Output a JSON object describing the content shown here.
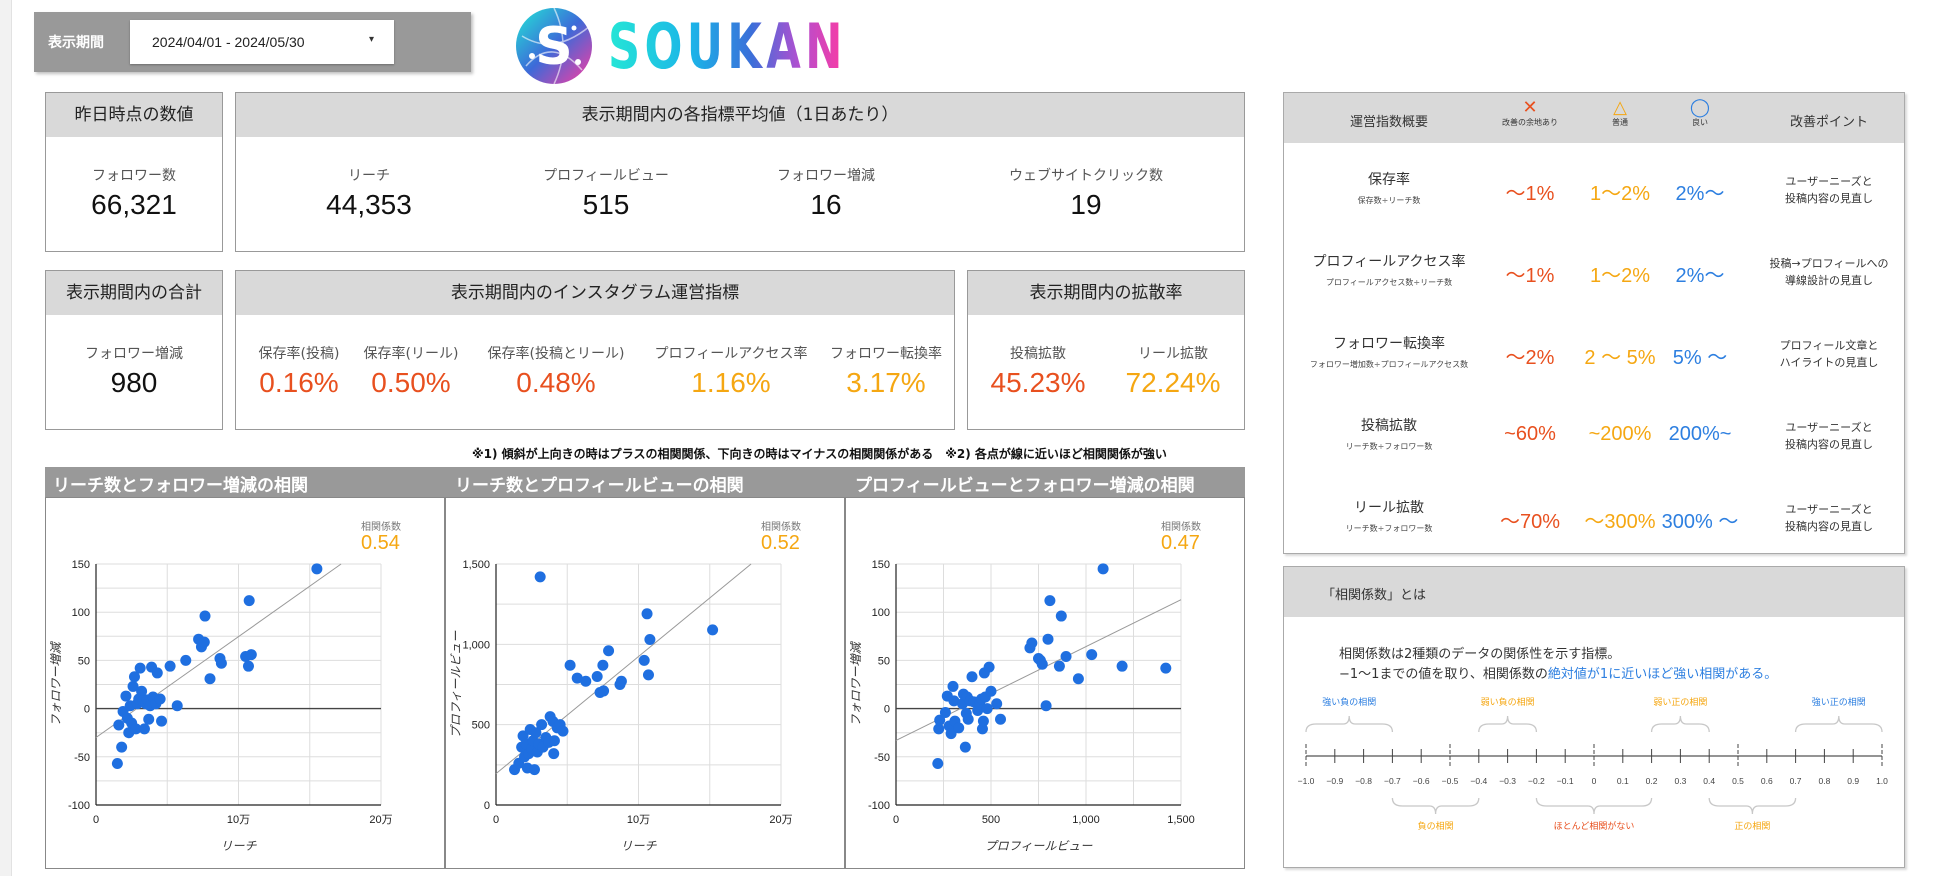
{
  "filter": {
    "label": "表示期間",
    "value": "2024/04/01 - 2024/05/30",
    "caret": "▾"
  },
  "logo": {
    "text": "SOUKAN"
  },
  "yesterday": {
    "title": "昨日時点の数値",
    "label": "フォロワー数",
    "value": "66,321"
  },
  "average": {
    "title": "表示期間内の各指標平均値（1日あたり）",
    "items": [
      {
        "label": "リーチ",
        "value": "44,353"
      },
      {
        "label": "プロフィールビュー",
        "value": "515"
      },
      {
        "label": "フォロワー増減",
        "value": "16"
      },
      {
        "label": "ウェブサイトクリック数",
        "value": "19"
      }
    ]
  },
  "total": {
    "title": "表示期間内の合計",
    "label": "フォロワー増減",
    "value": "980"
  },
  "ops": {
    "title": "表示期間内のインスタグラム運営指標",
    "items": [
      {
        "label": "保存率(投稿)",
        "value": "0.16%",
        "tone": "red"
      },
      {
        "label": "保存率(リール)",
        "value": "0.50%",
        "tone": "red"
      },
      {
        "label": "保存率(投稿とリール)",
        "value": "0.48%",
        "tone": "red"
      },
      {
        "label": "プロフィールアクセス率",
        "value": "1.16%",
        "tone": "orange"
      },
      {
        "label": "フォロワー転換率",
        "value": "3.17%",
        "tone": "orange"
      }
    ]
  },
  "spread": {
    "title": "表示期間内の拡散率",
    "items": [
      {
        "label": "投稿拡散",
        "value": "45.23%",
        "tone": "red"
      },
      {
        "label": "リール拡散",
        "value": "72.24%",
        "tone": "orange"
      }
    ]
  },
  "note": "※1) 傾斜が上向きの時はプラスの相関関係、下向きの時はマイナスの相関関係がある　※2) 各点が線に近いほど相関関係が強い",
  "charts": {
    "titles": [
      "リーチ数とフォロワー増減の相関",
      "リーチ数とプロフィールビューの相関",
      "プロフィールビューとフォロワー増減の相関"
    ],
    "coef_label": "相関係数"
  },
  "chart_data": [
    {
      "type": "scatter",
      "title": "リーチ数とフォロワー増減の相関",
      "xlabel": "リーチ",
      "ylabel": "フォロワー増減",
      "xlim": [
        0,
        200000
      ],
      "ylim": [
        -100,
        150
      ],
      "xticks": [
        "0",
        "10万",
        "20万"
      ],
      "yticks": [
        "-100",
        "-50",
        "0",
        "50",
        "100",
        "150"
      ],
      "correlation": "0.54",
      "trendline": [
        [
          0,
          -30
        ],
        [
          172000,
          150
        ]
      ],
      "points": [
        [
          15000,
          -57
        ],
        [
          18000,
          -40
        ],
        [
          16000,
          -17
        ],
        [
          19000,
          -3
        ],
        [
          21000,
          13
        ],
        [
          22000,
          -10
        ],
        [
          23000,
          -25
        ],
        [
          24000,
          3
        ],
        [
          25000,
          -15
        ],
        [
          26000,
          23
        ],
        [
          27000,
          33
        ],
        [
          28000,
          -21
        ],
        [
          29000,
          5
        ],
        [
          30000,
          10
        ],
        [
          31000,
          42
        ],
        [
          32000,
          18
        ],
        [
          33000,
          8
        ],
        [
          34000,
          -21
        ],
        [
          35000,
          5
        ],
        [
          36000,
          9
        ],
        [
          37000,
          -11
        ],
        [
          38000,
          3
        ],
        [
          39000,
          43
        ],
        [
          40000,
          12
        ],
        [
          42000,
          5
        ],
        [
          43000,
          37
        ],
        [
          45000,
          10
        ],
        [
          46000,
          -13
        ],
        [
          52000,
          44
        ],
        [
          57000,
          3
        ],
        [
          63000,
          50
        ],
        [
          72000,
          72
        ],
        [
          74000,
          64
        ],
        [
          76000,
          69
        ],
        [
          76500,
          96
        ],
        [
          80000,
          31
        ],
        [
          87000,
          52
        ],
        [
          88000,
          47
        ],
        [
          105000,
          54
        ],
        [
          107000,
          44
        ],
        [
          107500,
          112
        ],
        [
          109000,
          56
        ],
        [
          155000,
          145
        ]
      ]
    },
    {
      "type": "scatter",
      "title": "リーチ数とプロフィールビューの相関",
      "xlabel": "リーチ",
      "ylabel": "プロフィールビュー",
      "xlim": [
        0,
        200000
      ],
      "ylim": [
        0,
        1500
      ],
      "xticks": [
        "0",
        "10万",
        "20万"
      ],
      "yticks": [
        "0",
        "500",
        "1,000",
        "1,500"
      ],
      "correlation": "0.52",
      "trendline": [
        [
          0,
          195
        ],
        [
          179000,
          1500
        ]
      ],
      "points": [
        [
          13000,
          220
        ],
        [
          16000,
          260
        ],
        [
          18000,
          360
        ],
        [
          19000,
          430
        ],
        [
          20000,
          300
        ],
        [
          21000,
          380
        ],
        [
          22000,
          230
        ],
        [
          23000,
          320
        ],
        [
          24000,
          470
        ],
        [
          25000,
          350
        ],
        [
          26000,
          400
        ],
        [
          27000,
          220
        ],
        [
          28000,
          450
        ],
        [
          29000,
          330
        ],
        [
          30000,
          380
        ],
        [
          31000,
          1420
        ],
        [
          32000,
          500
        ],
        [
          33000,
          360
        ],
        [
          35000,
          420
        ],
        [
          37000,
          390
        ],
        [
          38000,
          550
        ],
        [
          40000,
          520
        ],
        [
          40500,
          320
        ],
        [
          41000,
          400
        ],
        [
          43000,
          480
        ],
        [
          45000,
          500
        ],
        [
          47000,
          460
        ],
        [
          52000,
          870
        ],
        [
          57000,
          790
        ],
        [
          63000,
          770
        ],
        [
          71000,
          800
        ],
        [
          73000,
          700
        ],
        [
          75000,
          870
        ],
        [
          75500,
          710
        ],
        [
          79000,
          960
        ],
        [
          87000,
          750
        ],
        [
          88000,
          770
        ],
        [
          104000,
          900
        ],
        [
          106000,
          1190
        ],
        [
          107000,
          810
        ],
        [
          108000,
          1030
        ],
        [
          152000,
          1090
        ]
      ]
    },
    {
      "type": "scatter",
      "title": "プロフィールビューとフォロワー増減の相関",
      "xlabel": "プロフィールビュー",
      "ylabel": "フォロワー増減",
      "xlim": [
        0,
        1500
      ],
      "ylim": [
        -100,
        150
      ],
      "xticks": [
        "0",
        "500",
        "1,000",
        "1,500"
      ],
      "yticks": [
        "-100",
        "-50",
        "0",
        "50",
        "100",
        "150"
      ],
      "correlation": "0.47",
      "trendline": [
        [
          0,
          -33
        ],
        [
          1500,
          113
        ]
      ],
      "points": [
        [
          220,
          -57
        ],
        [
          225,
          -21
        ],
        [
          230,
          -12
        ],
        [
          260,
          -4
        ],
        [
          270,
          13
        ],
        [
          280,
          -18
        ],
        [
          290,
          -26
        ],
        [
          300,
          23
        ],
        [
          305,
          8
        ],
        [
          310,
          -13
        ],
        [
          330,
          -20
        ],
        [
          350,
          5
        ],
        [
          355,
          15
        ],
        [
          365,
          -40
        ],
        [
          370,
          -5
        ],
        [
          375,
          12
        ],
        [
          380,
          -11
        ],
        [
          390,
          8
        ],
        [
          400,
          33
        ],
        [
          410,
          7
        ],
        [
          430,
          -2
        ],
        [
          440,
          5
        ],
        [
          450,
          10
        ],
        [
          455,
          -21
        ],
        [
          460,
          -13
        ],
        [
          465,
          37
        ],
        [
          470,
          12
        ],
        [
          480,
          0
        ],
        [
          490,
          43
        ],
        [
          500,
          18
        ],
        [
          530,
          5
        ],
        [
          550,
          -11
        ],
        [
          705,
          63
        ],
        [
          715,
          68
        ],
        [
          750,
          52
        ],
        [
          760,
          50
        ],
        [
          770,
          46
        ],
        [
          790,
          3
        ],
        [
          800,
          72
        ],
        [
          810,
          112
        ],
        [
          860,
          44
        ],
        [
          870,
          96
        ],
        [
          895,
          54
        ],
        [
          960,
          31
        ],
        [
          1030,
          56
        ],
        [
          1090,
          145
        ],
        [
          1190,
          44
        ],
        [
          1420,
          42
        ]
      ]
    }
  ],
  "guide": {
    "head": {
      "summary": "運営指数概要",
      "bad": {
        "symbol": "✕",
        "label": "改善の余地あり"
      },
      "mid": {
        "symbol": "△",
        "label": "普通"
      },
      "good": {
        "symbol": "◯",
        "label": "良い"
      },
      "point": "改善ポイント"
    },
    "rows": [
      {
        "name": "保存率",
        "formula": "保存数÷リーチ数",
        "bad": "～1%",
        "mid": "1～2%",
        "good": "2%～",
        "tip": "ユーザーニーズと\n投稿内容の見直し"
      },
      {
        "name": "プロフィールアクセス率",
        "formula": "プロフィールアクセス数÷リーチ数",
        "bad": "～1%",
        "mid": "1～2%",
        "good": "2%～",
        "tip": "投稿→プロフィールへの\n導線設計の見直し"
      },
      {
        "name": "フォロワー転換率",
        "formula": "フォロワー増加数÷プロフィールアクセス数",
        "bad": "～2%",
        "mid": "2 ～ 5%",
        "good": "5% ～",
        "tip": "プロフィール文章と\nハイライトの見直し"
      },
      {
        "name": "投稿拡散",
        "formula": "リーチ数÷フォロワー数",
        "bad": "~60%",
        "mid": "~200%",
        "good": "200%~",
        "tip": "ユーザーニーズと\n投稿内容の見直し"
      },
      {
        "name": "リール拡散",
        "formula": "リーチ数÷フォロワー数",
        "bad": "～70%",
        "mid": "～300%",
        "good": "300% ～",
        "tip": "ユーザーニーズと\n投稿内容の見直し"
      }
    ]
  },
  "corr": {
    "title": "「相関係数」とは",
    "line1": "相関係数は2種類のデータの関係性を示す指標。",
    "line2_a": "−1〜1までの値を取り、相関係数の",
    "line2_b": "絶対値が1に近いほど強い相関がある。",
    "scale": [
      "−1.0",
      "−0.9",
      "−0.8",
      "−0.7",
      "−0.6",
      "−0.5",
      "−0.4",
      "−0.3",
      "−0.2",
      "−0.1",
      "0",
      "0.1",
      "0.2",
      "0.3",
      "0.4",
      "0.5",
      "0.6",
      "0.7",
      "0.8",
      "0.9",
      "1.0"
    ],
    "ranges_top": [
      {
        "label": "強い負の相関",
        "from": -1.0,
        "to": -0.7,
        "color": "#2d7fe0"
      },
      {
        "label": "弱い負の相関",
        "from": -0.4,
        "to": -0.2,
        "color": "#f5a712"
      },
      {
        "label": "弱い正の相関",
        "from": 0.2,
        "to": 0.4,
        "color": "#f5a712"
      },
      {
        "label": "強い正の相関",
        "from": 0.7,
        "to": 1.0,
        "color": "#2d7fe0"
      }
    ],
    "ranges_bottom": [
      {
        "label": "負の相関",
        "from": -0.7,
        "to": -0.4,
        "color": "#f5a712"
      },
      {
        "label": "ほとんど相関がない",
        "from": -0.2,
        "to": 0.2,
        "color": "#e8501f"
      },
      {
        "label": "正の相関",
        "from": 0.4,
        "to": 0.7,
        "color": "#f5a712"
      }
    ]
  },
  "colors": {
    "red": "#e8501f",
    "orange": "#f5a712",
    "blue": "#2d7fe0",
    "dot": "#1f6fe0",
    "header_gray": "#d9d9d9",
    "chart_head": "#999999"
  }
}
